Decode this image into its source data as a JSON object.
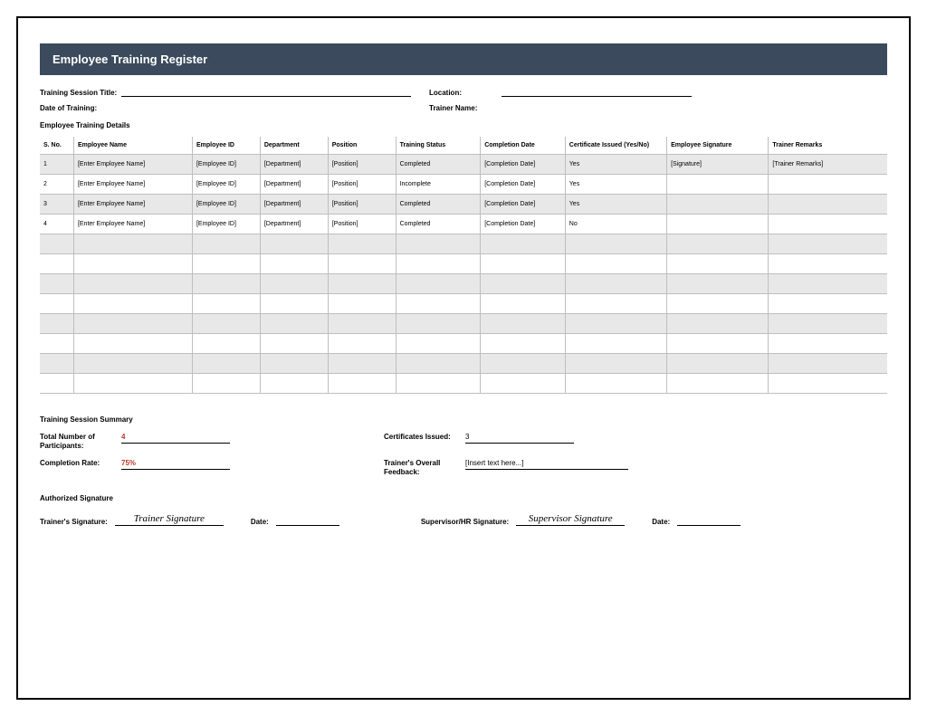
{
  "banner": {
    "title": "Employee Training Register"
  },
  "meta": {
    "session_title_label": "Training Session Title:",
    "location_label": "Location:",
    "date_label": "Date of Training:",
    "trainer_label": "Trainer Name:"
  },
  "details": {
    "heading": "Employee Training Details",
    "columns": [
      "S. No.",
      "Employee Name",
      "Employee ID",
      "Department",
      "Position",
      "Training Status",
      "Completion Date",
      "Certificate Issued (Yes/No)",
      "Employee Signature",
      "Trainer Remarks"
    ],
    "col_widths": [
      "4%",
      "14%",
      "8%",
      "8%",
      "8%",
      "10%",
      "10%",
      "12%",
      "12%",
      "14%"
    ],
    "rows": [
      {
        "sno": "1",
        "name": "[Enter Employee Name]",
        "eid": "[Employee ID]",
        "dept": "[Department]",
        "pos": "[Position]",
        "status": "Completed",
        "cdate": "[Completion Date]",
        "cert": "Yes",
        "sig": "[Signature]",
        "rem": "[Trainer Remarks]"
      },
      {
        "sno": "2",
        "name": "[Enter Employee Name]",
        "eid": "[Employee ID]",
        "dept": "[Department]",
        "pos": "[Position]",
        "status": "Incomplete",
        "cdate": "[Completion Date]",
        "cert": "Yes",
        "sig": "",
        "rem": ""
      },
      {
        "sno": "3",
        "name": "[Enter Employee Name]",
        "eid": "[Employee ID]",
        "dept": "[Department]",
        "pos": "[Position]",
        "status": "Completed",
        "cdate": "[Completion Date]",
        "cert": "Yes",
        "sig": "",
        "rem": ""
      },
      {
        "sno": "4",
        "name": "[Enter Employee Name]",
        "eid": "[Employee ID]",
        "dept": "[Department]",
        "pos": "[Position]",
        "status": "Completed",
        "cdate": "[Completion Date]",
        "cert": "No",
        "sig": "",
        "rem": ""
      }
    ],
    "empty_rows": 8
  },
  "summary": {
    "heading": "Training Session Summary",
    "total_label": "Total Number of Participants:",
    "total_value": "4",
    "cert_label": "Certificates Issued:",
    "cert_value": "3",
    "rate_label": "Completion Rate:",
    "rate_value": "75%",
    "feedback_label": "Trainer's Overall Feedback:",
    "feedback_value": "[Insert text here...]"
  },
  "signature": {
    "heading": "Authorized Signature",
    "trainer_label": "Trainer's Signature:",
    "trainer_value": "Trainer Signature",
    "date_label": "Date:",
    "supervisor_label": "Supervisor/HR Signature:",
    "supervisor_value": "Supervisor Signature",
    "date2_label": "Date:"
  },
  "style": {
    "banner_bg": "#3b4a5c",
    "alt_row_bg": "#e8e8e8",
    "accent_color": "#c0392b"
  }
}
